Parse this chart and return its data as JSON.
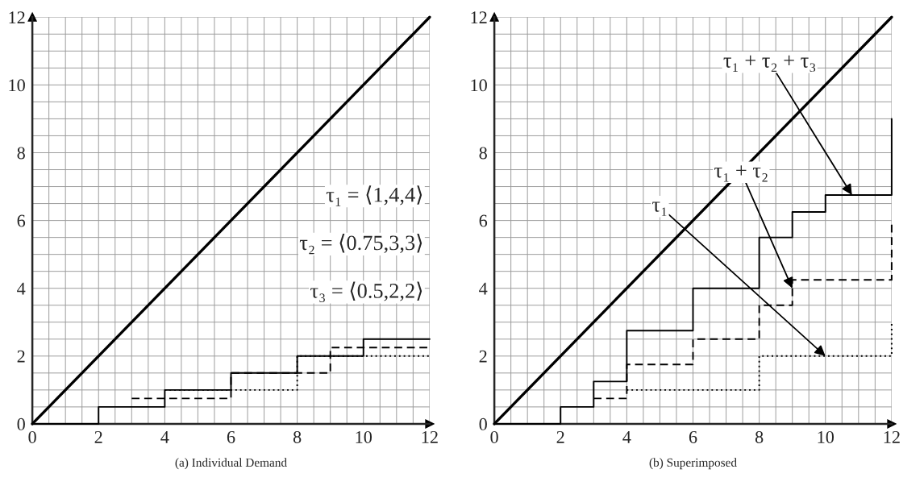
{
  "chart_data": [
    {
      "type": "line",
      "xlabel": "(a) Individual Demand",
      "grid": true,
      "xlim": [
        0,
        12
      ],
      "ylim": [
        0,
        12
      ],
      "xticks": [
        0,
        {
          "value": 0.5,
          "label": null
        },
        {
          "value": 1,
          "label": null
        },
        {
          "value": 1.5,
          "label": null
        },
        2,
        {
          "value": 2.5,
          "label": null
        },
        {
          "value": 3,
          "label": null
        },
        {
          "value": 3.5,
          "label": null
        },
        4,
        {
          "value": 4.5,
          "label": null
        },
        {
          "value": 5,
          "label": null
        },
        {
          "value": 5.5,
          "label": null
        },
        6,
        {
          "value": 6.5,
          "label": null
        },
        {
          "value": 7,
          "label": null
        },
        {
          "value": 7.5,
          "label": null
        },
        8,
        {
          "value": 8.5,
          "label": null
        },
        {
          "value": 9,
          "label": null
        },
        {
          "value": 9.5,
          "label": null
        },
        10,
        {
          "value": 10.5,
          "label": null
        },
        {
          "value": 11,
          "label": null
        },
        {
          "value": 11.5,
          "label": null
        },
        12
      ],
      "yticks": [
        0,
        {
          "value": 0.5,
          "label": null
        },
        {
          "value": 1,
          "label": null
        },
        {
          "value": 1.5,
          "label": null
        },
        2,
        {
          "value": 2.5,
          "label": null
        },
        {
          "value": 3,
          "label": null
        },
        {
          "value": 3.5,
          "label": null
        },
        4,
        {
          "value": 4.5,
          "label": null
        },
        {
          "value": 5,
          "label": null
        },
        {
          "value": 5.5,
          "label": null
        },
        6,
        {
          "value": 6.5,
          "label": null
        },
        {
          "value": 7,
          "label": null
        },
        {
          "value": 7.5,
          "label": null
        },
        8,
        {
          "value": 8.5,
          "label": null
        },
        {
          "value": 9,
          "label": null
        },
        {
          "value": 9.5,
          "label": null
        },
        10,
        {
          "value": 10.5,
          "label": null
        },
        {
          "value": 11,
          "label": null
        },
        {
          "value": 11.5,
          "label": null
        },
        12
      ],
      "annotations": [
        "τ₁ = ⟨1,4,4⟩",
        "τ₂ = ⟨0.75,3,3⟩",
        "τ₃ = ⟨0.5,2,2⟩"
      ],
      "series": [
        {
          "color": "#000000",
          "line_style": "solid",
          "x": [
            0,
            12
          ],
          "values": [
            0,
            12
          ]
        },
        {
          "type": "step",
          "color": "#000000",
          "line_style": "solid",
          "x": [
            0,
            2,
            4,
            6,
            8,
            10,
            12
          ],
          "values": [
            0,
            0.5,
            1,
            1.5,
            2,
            2.5,
            2.5
          ]
        },
        {
          "type": "step",
          "color": "#000000",
          "line_style": "dashed",
          "x": [
            3,
            6,
            9,
            12
          ],
          "values": [
            0.75,
            1.5,
            2.25,
            2.25
          ]
        },
        {
          "type": "step",
          "color": "#000000",
          "line_style": "dotted",
          "x": [
            4,
            8,
            12
          ],
          "values": [
            1,
            2,
            2
          ]
        }
      ]
    },
    {
      "type": "line",
      "xlabel": "(b) Superimposed",
      "grid": true,
      "xlim": [
        0,
        12
      ],
      "ylim": [
        0,
        12
      ],
      "xticks": [
        0,
        {
          "value": 0.5,
          "label": null
        },
        {
          "value": 1,
          "label": null
        },
        {
          "value": 1.5,
          "label": null
        },
        2,
        {
          "value": 2.5,
          "label": null
        },
        {
          "value": 3,
          "label": null
        },
        {
          "value": 3.5,
          "label": null
        },
        4,
        {
          "value": 4.5,
          "label": null
        },
        {
          "value": 5,
          "label": null
        },
        {
          "value": 5.5,
          "label": null
        },
        6,
        {
          "value": 6.5,
          "label": null
        },
        {
          "value": 7,
          "label": null
        },
        {
          "value": 7.5,
          "label": null
        },
        8,
        {
          "value": 8.5,
          "label": null
        },
        {
          "value": 9,
          "label": null
        },
        {
          "value": 9.5,
          "label": null
        },
        10,
        {
          "value": 10.5,
          "label": null
        },
        {
          "value": 11,
          "label": null
        },
        {
          "value": 11.5,
          "label": null
        },
        12
      ],
      "yticks": [
        0,
        {
          "value": 0.5,
          "label": null
        },
        {
          "value": 1,
          "label": null
        },
        {
          "value": 1.5,
          "label": null
        },
        2,
        {
          "value": 2.5,
          "label": null
        },
        {
          "value": 3,
          "label": null
        },
        {
          "value": 3.5,
          "label": null
        },
        4,
        {
          "value": 4.5,
          "label": null
        },
        {
          "value": 5,
          "label": null
        },
        {
          "value": 5.5,
          "label": null
        },
        6,
        {
          "value": 6.5,
          "label": null
        },
        {
          "value": 7,
          "label": null
        },
        {
          "value": 7.5,
          "label": null
        },
        8,
        {
          "value": 8.5,
          "label": null
        },
        {
          "value": 9,
          "label": null
        },
        {
          "value": 9.5,
          "label": null
        },
        10,
        {
          "value": 10.5,
          "label": null
        },
        {
          "value": 11,
          "label": null
        },
        {
          "value": 11.5,
          "label": null
        },
        12
      ],
      "annotations": [
        {
          "text": "τ₁",
          "x": 10,
          "y": 2
        },
        {
          "text": "τ₁ + τ₂",
          "x": 9,
          "y": 4
        },
        {
          "text": "τ₁ + τ₂ + τ₃",
          "x": 10.8,
          "y": 6.75
        }
      ],
      "series": [
        {
          "color": "#000000",
          "line_style": "solid",
          "x": [
            0,
            12
          ],
          "values": [
            0,
            12
          ]
        },
        {
          "type": "step",
          "color": "#000000",
          "line_style": "solid",
          "x": [
            0,
            2,
            3,
            4,
            6,
            8,
            9,
            10,
            12,
            12
          ],
          "values": [
            0,
            0.5,
            1.25,
            2.75,
            4,
            5.5,
            6.25,
            6.75,
            6.75,
            9
          ]
        },
        {
          "type": "step",
          "color": "#000000",
          "line_style": "dashed",
          "x": [
            3,
            4,
            6,
            8,
            9,
            12,
            12
          ],
          "values": [
            0.75,
            1.75,
            2.5,
            3.5,
            4.25,
            4.25,
            6
          ]
        },
        {
          "type": "step",
          "color": "#000000",
          "line_style": "dotted",
          "x": [
            4,
            8,
            12,
            12
          ],
          "values": [
            1,
            2,
            2,
            3
          ]
        }
      ]
    }
  ]
}
